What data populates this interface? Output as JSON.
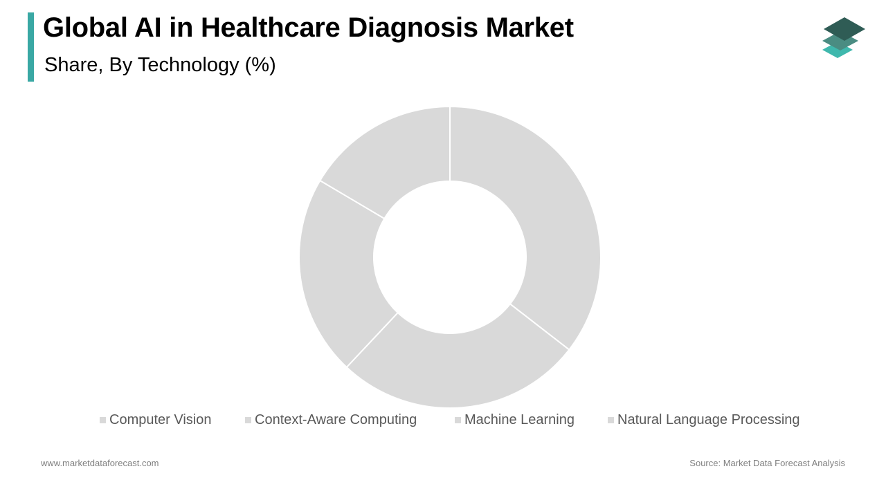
{
  "header": {
    "title": "Global AI in Healthcare Diagnosis Market",
    "subtitle": "Share, By Technology  (%)"
  },
  "colors": {
    "accent": "#3aa8a4",
    "slice": "#d9d9d9",
    "slice_border": "#ffffff",
    "legend_text": "#595959",
    "footer_text": "#7f7f7f",
    "logo_top": "#2f5c55",
    "logo_mid": "#4a8c82",
    "logo_bottom": "#3fb8ad"
  },
  "logo": {
    "icon": "stacked-layers-icon"
  },
  "chart_data": {
    "type": "pie",
    "variant": "donut",
    "title": "",
    "categories": [
      "Computer Vision",
      "Context-Aware Computing",
      "Machine Learning",
      "Natural Language Processing"
    ],
    "values": [
      35.5,
      26.5,
      21.5,
      16.5
    ],
    "unit": "%",
    "start_angle_deg": 0,
    "direction": "clockwise",
    "legend_position": "bottom",
    "data_labels": false
  },
  "footer": {
    "website": "www.marketdataforecast.com",
    "source": "Source: Market Data Forecast Analysis"
  }
}
